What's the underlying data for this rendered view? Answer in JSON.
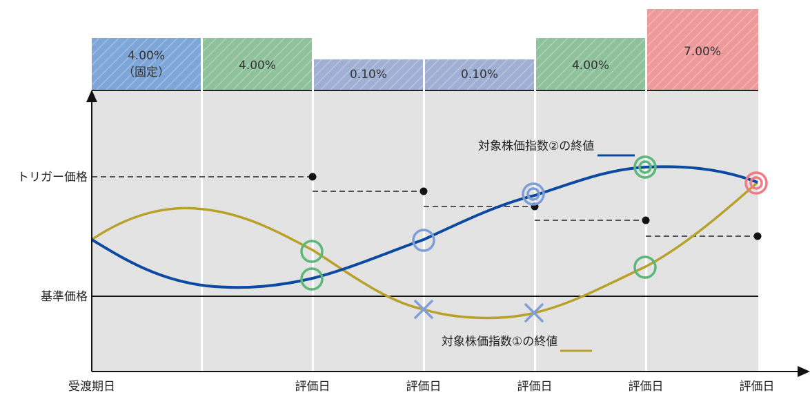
{
  "coupons": [
    {
      "rate": "4.00%",
      "sub": "（固定）",
      "level": "high",
      "color": "#7ea6d8"
    },
    {
      "rate": "4.00%",
      "sub": "",
      "level": "high",
      "color": "#8fc29c"
    },
    {
      "rate": "0.10%",
      "sub": "",
      "level": "low",
      "color": "#9fb0d4"
    },
    {
      "rate": "0.10%",
      "sub": "",
      "level": "low",
      "color": "#9fb0d4"
    },
    {
      "rate": "4.00%",
      "sub": "",
      "level": "high",
      "color": "#8fc29c"
    },
    {
      "rate": "7.00%",
      "sub": "",
      "level": "top",
      "color": "#ef9a9a"
    }
  ],
  "y_labels": {
    "trigger": "トリガー価格",
    "base": "基準価格"
  },
  "x_labels": {
    "start": "受渡期日",
    "eval": "評価日"
  },
  "legend": {
    "index2": "対象株価指数②の終値",
    "index2_color": "#0b4aa0",
    "index1": "対象株価指数①の終値",
    "index1_color": "#b8a12a"
  },
  "colors": {
    "plot_bg": "#e3e3e3",
    "dashed": "#222222",
    "marker_green": "#5cb87a",
    "marker_blue": "#7c9ed8",
    "marker_red": "#ef7b86",
    "cross": "#7f9fd6"
  }
}
